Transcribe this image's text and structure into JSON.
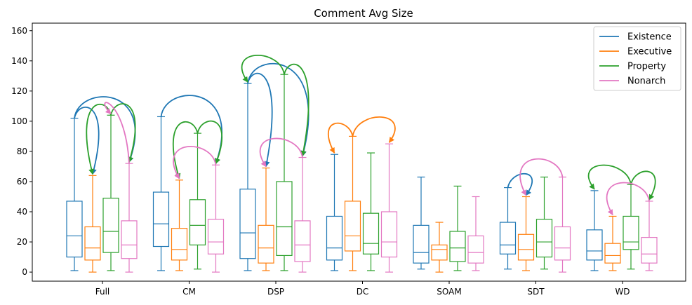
{
  "chart_data": {
    "type": "box",
    "title": "Comment Avg Size",
    "xlabel": "",
    "ylabel": "",
    "ylim": [
      -6,
      165
    ],
    "yticks": [
      0,
      20,
      40,
      60,
      80,
      100,
      120,
      140,
      160
    ],
    "categories": [
      "Full",
      "CM",
      "DSP",
      "DC",
      "SOAM",
      "SDT",
      "WD"
    ],
    "legend": {
      "position": "top-right"
    },
    "series": [
      {
        "name": "Existence",
        "color": "#1f77b4",
        "boxes": [
          {
            "whislo": 1,
            "q1": 10,
            "med": 24,
            "q3": 47,
            "whishi": 102
          },
          {
            "whislo": 1,
            "q1": 17,
            "med": 32,
            "q3": 53,
            "whishi": 103
          },
          {
            "whislo": 1,
            "q1": 9,
            "med": 26,
            "q3": 55,
            "whishi": 125
          },
          {
            "whislo": 1,
            "q1": 8,
            "med": 16,
            "q3": 37,
            "whishi": 78
          },
          {
            "whislo": 2,
            "q1": 6,
            "med": 13,
            "q3": 31,
            "whishi": 63
          },
          {
            "whislo": 2,
            "q1": 12,
            "med": 18,
            "q3": 33,
            "whishi": 56
          },
          {
            "whislo": 1,
            "q1": 8,
            "med": 14,
            "q3": 28,
            "whishi": 54
          }
        ]
      },
      {
        "name": "Executive",
        "color": "#ff7f0e",
        "boxes": [
          {
            "whislo": 0,
            "q1": 8,
            "med": 16,
            "q3": 30,
            "whishi": 64
          },
          {
            "whislo": 1,
            "q1": 8,
            "med": 15,
            "q3": 29,
            "whishi": 61
          },
          {
            "whislo": 1,
            "q1": 6,
            "med": 16,
            "q3": 31,
            "whishi": 69
          },
          {
            "whislo": 1,
            "q1": 14,
            "med": 24,
            "q3": 47,
            "whishi": 90
          },
          {
            "whislo": 0,
            "q1": 8,
            "med": 15,
            "q3": 18,
            "whishi": 33
          },
          {
            "whislo": 1,
            "q1": 8,
            "med": 15,
            "q3": 25,
            "whishi": 50
          },
          {
            "whislo": 1,
            "q1": 6,
            "med": 11,
            "q3": 19,
            "whishi": 37
          }
        ]
      },
      {
        "name": "Property",
        "color": "#2ca02c",
        "boxes": [
          {
            "whislo": 1,
            "q1": 13,
            "med": 27,
            "q3": 49,
            "whishi": 104
          },
          {
            "whislo": 2,
            "q1": 18,
            "med": 31,
            "q3": 48,
            "whishi": 92
          },
          {
            "whislo": 1,
            "q1": 11,
            "med": 30,
            "q3": 60,
            "whishi": 131
          },
          {
            "whislo": 1,
            "q1": 12,
            "med": 19,
            "q3": 39,
            "whishi": 79
          },
          {
            "whislo": 1,
            "q1": 7,
            "med": 16,
            "q3": 27,
            "whishi": 57
          },
          {
            "whislo": 2,
            "q1": 10,
            "med": 20,
            "q3": 35,
            "whishi": 63
          },
          {
            "whislo": 2,
            "q1": 15,
            "med": 20,
            "q3": 37,
            "whishi": 58
          }
        ]
      },
      {
        "name": "Nonarch",
        "color": "#e377c2",
        "boxes": [
          {
            "whislo": 0,
            "q1": 9,
            "med": 18,
            "q3": 34,
            "whishi": 72
          },
          {
            "whislo": 0,
            "q1": 12,
            "med": 20,
            "q3": 35,
            "whishi": 71
          },
          {
            "whislo": 0,
            "q1": 7,
            "med": 18,
            "q3": 34,
            "whishi": 76
          },
          {
            "whislo": 0,
            "q1": 10,
            "med": 20,
            "q3": 40,
            "whishi": 85
          },
          {
            "whislo": 1,
            "q1": 6,
            "med": 13,
            "q3": 24,
            "whishi": 50
          },
          {
            "whislo": 0,
            "q1": 8,
            "med": 16,
            "q3": 30,
            "whishi": 63
          },
          {
            "whislo": 1,
            "q1": 6,
            "med": 12,
            "q3": 23,
            "whishi": 47
          }
        ]
      }
    ],
    "annotations": [
      {
        "category": "Full",
        "from": "Existence",
        "to": "Executive",
        "color": "#1f77b4"
      },
      {
        "category": "Full",
        "from": "Existence",
        "to": "Nonarch",
        "color": "#1f77b4"
      },
      {
        "category": "Full",
        "from": "Property",
        "to": "Executive",
        "color": "#2ca02c"
      },
      {
        "category": "Full",
        "from": "Property",
        "to": "Nonarch",
        "color": "#2ca02c"
      },
      {
        "category": "Full",
        "from": "Nonarch",
        "to": "Property",
        "color": "#e377c2"
      },
      {
        "category": "CM",
        "from": "Existence",
        "to": "Nonarch",
        "color": "#1f77b4"
      },
      {
        "category": "CM",
        "from": "Property",
        "to": "Executive",
        "color": "#2ca02c"
      },
      {
        "category": "CM",
        "from": "Property",
        "to": "Nonarch",
        "color": "#2ca02c"
      },
      {
        "category": "CM",
        "from": "Nonarch",
        "to": "Executive",
        "color": "#e377c2"
      },
      {
        "category": "DSP",
        "from": "Existence",
        "to": "Executive",
        "color": "#1f77b4"
      },
      {
        "category": "DSP",
        "from": "Existence",
        "to": "Nonarch",
        "color": "#1f77b4"
      },
      {
        "category": "DSP",
        "from": "Property",
        "to": "Existence",
        "color": "#2ca02c"
      },
      {
        "category": "DSP",
        "from": "Property",
        "to": "Nonarch",
        "color": "#2ca02c"
      },
      {
        "category": "DSP",
        "from": "Nonarch",
        "to": "Executive",
        "color": "#e377c2"
      },
      {
        "category": "DC",
        "from": "Executive",
        "to": "Existence",
        "color": "#ff7f0e"
      },
      {
        "category": "DC",
        "from": "Executive",
        "to": "Nonarch",
        "color": "#ff7f0e"
      },
      {
        "category": "SDT",
        "from": "Existence",
        "to": "Executive",
        "color": "#1f77b4"
      },
      {
        "category": "SDT",
        "from": "Nonarch",
        "to": "Executive",
        "color": "#e377c2"
      },
      {
        "category": "WD",
        "from": "Property",
        "to": "Existence",
        "color": "#2ca02c"
      },
      {
        "category": "WD",
        "from": "Property",
        "to": "Nonarch",
        "color": "#2ca02c"
      },
      {
        "category": "WD",
        "from": "Nonarch",
        "to": "Executive",
        "color": "#e377c2"
      }
    ]
  }
}
